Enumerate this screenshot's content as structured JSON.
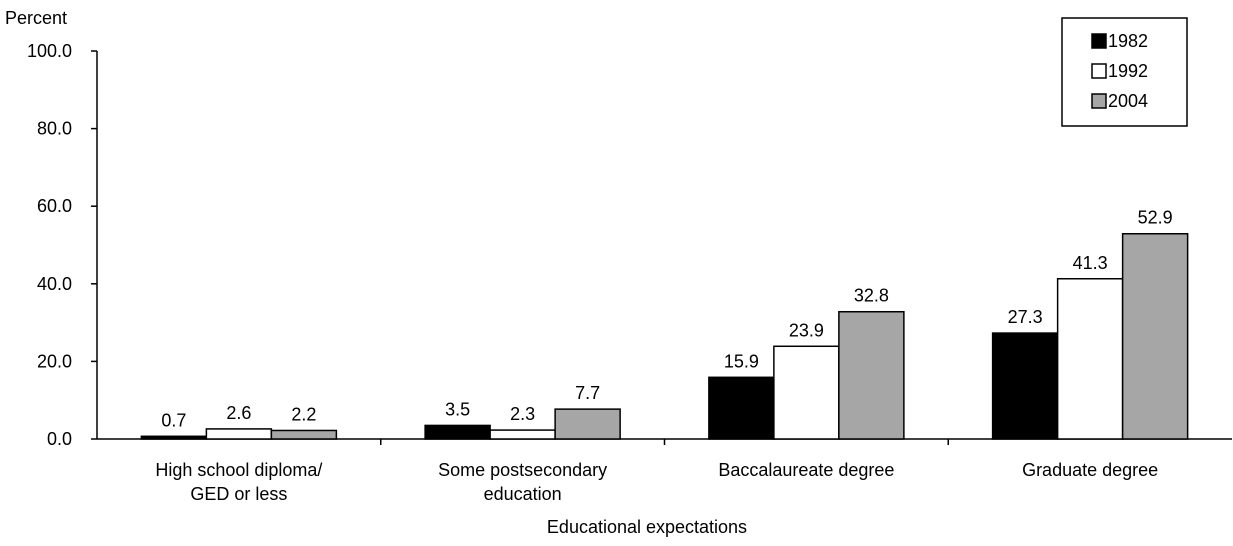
{
  "chart_data": {
    "type": "bar",
    "title": "",
    "ylabel": "Percent",
    "xlabel": "Educational expectations",
    "ylim": [
      0,
      100
    ],
    "yticks": [
      "0.0",
      "20.0",
      "40.0",
      "60.0",
      "80.0",
      "100.0"
    ],
    "categories": [
      [
        "High school diploma/",
        "GED or less"
      ],
      [
        "Some postsecondary",
        "education"
      ],
      [
        "Baccalaureate degree"
      ],
      [
        "Graduate degree"
      ]
    ],
    "series": [
      {
        "name": "1982",
        "color": "#000000",
        "values": [
          0.7,
          3.5,
          15.9,
          27.3
        ],
        "labels": [
          "0.7",
          "3.5",
          "15.9",
          "27.3"
        ]
      },
      {
        "name": "1992",
        "color": "#ffffff",
        "values": [
          2.6,
          2.3,
          23.9,
          41.3
        ],
        "labels": [
          "2.6",
          "2.3",
          "23.9",
          "41.3"
        ]
      },
      {
        "name": "2004",
        "color": "#a6a6a6",
        "values": [
          2.2,
          7.7,
          32.8,
          52.9
        ],
        "labels": [
          "2.2",
          "7.7",
          "32.8",
          "52.9"
        ]
      }
    ],
    "legend": "top-right",
    "grid": false
  }
}
